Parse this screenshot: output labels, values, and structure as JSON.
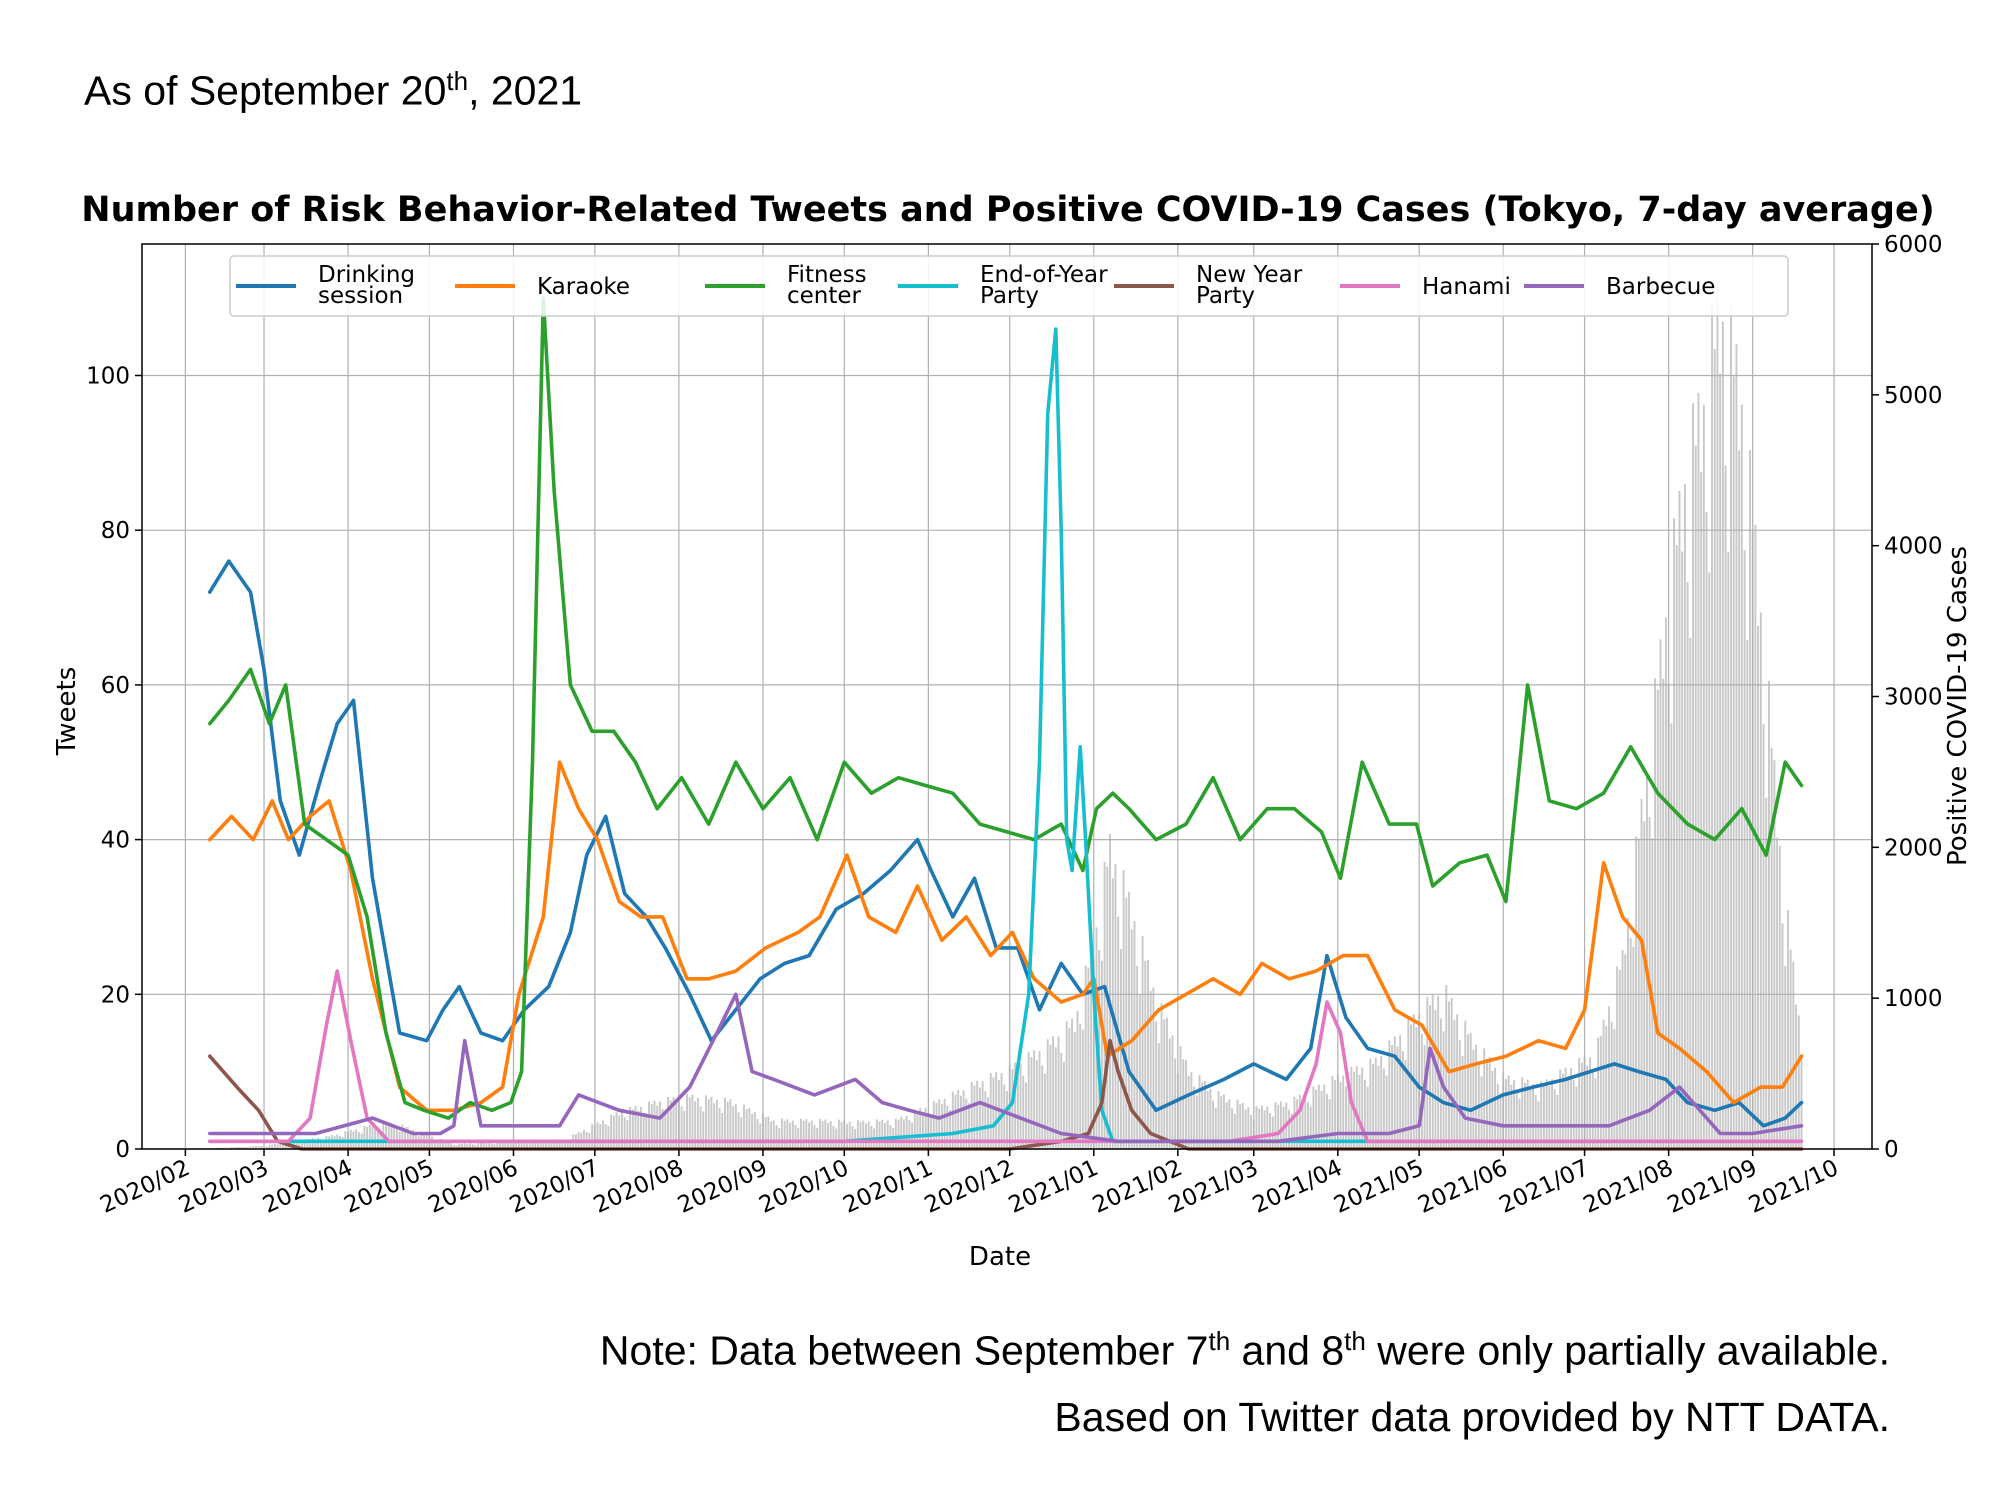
{
  "header": {
    "asof_text": "As of September 20",
    "asof_sup": "th",
    "asof_tail": ", 2021"
  },
  "footer": {
    "note_a": "Note: Data between September 7",
    "note_sup1": "th",
    "note_b": " and 8",
    "note_sup2": "th",
    "note_c": " were only partially available.",
    "source": "Based on Twitter data provided by NTT DATA."
  },
  "chart_data": {
    "type": "line",
    "title": "Number of Risk Behavior-Related Tweets and Positive COVID-19 Cases (Tokyo, 7-day average)",
    "xlabel": "Date",
    "ylabel": "Tweets",
    "y2label": "Positive COVID-19 Cases",
    "ylim": [
      0,
      117
    ],
    "y2lim": [
      0,
      6000
    ],
    "xlim": [
      "2020-01-16",
      "2021-10-15"
    ],
    "yticks": [
      0,
      20,
      40,
      60,
      80,
      100
    ],
    "y2ticks": [
      0,
      1000,
      2000,
      3000,
      4000,
      5000,
      6000
    ],
    "xticks": [
      "2020/02",
      "2020/03",
      "2020/04",
      "2020/05",
      "2020/06",
      "2020/07",
      "2020/08",
      "2020/09",
      "2020/10",
      "2020/11",
      "2020/12",
      "2021/01",
      "2021/02",
      "2021/03",
      "2021/04",
      "2021/05",
      "2021/06",
      "2021/07",
      "2021/08",
      "2021/09",
      "2021/10"
    ],
    "grid": true,
    "legend_position": "top",
    "series": [
      {
        "name": "Drinking session",
        "color": "#1f77b4",
        "x": [
          "2020-02-10",
          "2020-02-17",
          "2020-02-25",
          "2020-03-01",
          "2020-03-07",
          "2020-03-14",
          "2020-03-22",
          "2020-03-28",
          "2020-04-03",
          "2020-04-10",
          "2020-04-20",
          "2020-04-30",
          "2020-05-06",
          "2020-05-12",
          "2020-05-20",
          "2020-05-28",
          "2020-06-05",
          "2020-06-14",
          "2020-06-22",
          "2020-06-28",
          "2020-07-05",
          "2020-07-12",
          "2020-07-20",
          "2020-07-27",
          "2020-08-05",
          "2020-08-13",
          "2020-08-22",
          "2020-08-31",
          "2020-09-09",
          "2020-09-18",
          "2020-09-28",
          "2020-10-08",
          "2020-10-18",
          "2020-10-28",
          "2020-11-02",
          "2020-11-10",
          "2020-11-18",
          "2020-11-26",
          "2020-12-04",
          "2020-12-12",
          "2020-12-20",
          "2020-12-28",
          "2021-01-05",
          "2021-01-14",
          "2021-01-24",
          "2021-02-05",
          "2021-02-18",
          "2021-03-01",
          "2021-03-13",
          "2021-03-22",
          "2021-03-28",
          "2021-04-04",
          "2021-04-12",
          "2021-04-22",
          "2021-05-01",
          "2021-05-10",
          "2021-05-20",
          "2021-06-01",
          "2021-06-12",
          "2021-06-24",
          "2021-07-03",
          "2021-07-12",
          "2021-07-21",
          "2021-07-31",
          "2021-08-08",
          "2021-08-18",
          "2021-08-27",
          "2021-09-05",
          "2021-09-13",
          "2021-09-19"
        ],
        "values": [
          72,
          76,
          72,
          62,
          45,
          38,
          48,
          55,
          58,
          35,
          15,
          14,
          18,
          21,
          15,
          14,
          18,
          21,
          28,
          38,
          43,
          33,
          30,
          26,
          20,
          14,
          18,
          22,
          24,
          25,
          31,
          33,
          36,
          40,
          36,
          30,
          35,
          26,
          26,
          18,
          24,
          20,
          21,
          10,
          5,
          7,
          9,
          11,
          9,
          13,
          25,
          17,
          13,
          12,
          8,
          6,
          5,
          7,
          8,
          9,
          10,
          11,
          10,
          9,
          6,
          5,
          6,
          3,
          4,
          6
        ]
      },
      {
        "name": "Karaoke",
        "color": "#ff7f0e",
        "x": [
          "2020-02-10",
          "2020-02-18",
          "2020-02-26",
          "2020-03-04",
          "2020-03-10",
          "2020-03-18",
          "2020-03-25",
          "2020-04-02",
          "2020-04-10",
          "2020-04-20",
          "2020-04-30",
          "2020-05-10",
          "2020-05-20",
          "2020-05-28",
          "2020-06-03",
          "2020-06-12",
          "2020-06-18",
          "2020-06-25",
          "2020-07-02",
          "2020-07-10",
          "2020-07-18",
          "2020-07-26",
          "2020-08-04",
          "2020-08-12",
          "2020-08-22",
          "2020-09-02",
          "2020-09-14",
          "2020-09-22",
          "2020-10-02",
          "2020-10-10",
          "2020-10-20",
          "2020-10-28",
          "2020-11-06",
          "2020-11-15",
          "2020-11-24",
          "2020-12-02",
          "2020-12-10",
          "2020-12-20",
          "2020-12-28",
          "2021-01-01",
          "2021-01-06",
          "2021-01-15",
          "2021-01-25",
          "2021-02-04",
          "2021-02-14",
          "2021-02-24",
          "2021-03-04",
          "2021-03-14",
          "2021-03-24",
          "2021-04-03",
          "2021-04-12",
          "2021-04-22",
          "2021-05-02",
          "2021-05-12",
          "2021-05-22",
          "2021-06-02",
          "2021-06-14",
          "2021-06-24",
          "2021-07-01",
          "2021-07-08",
          "2021-07-15",
          "2021-07-22",
          "2021-07-28",
          "2021-08-05",
          "2021-08-15",
          "2021-08-25",
          "2021-09-04",
          "2021-09-12",
          "2021-09-19"
        ],
        "values": [
          40,
          43,
          40,
          45,
          40,
          43,
          45,
          36,
          22,
          8,
          5,
          5,
          6,
          8,
          20,
          30,
          50,
          44,
          40,
          32,
          30,
          30,
          22,
          22,
          23,
          26,
          28,
          30,
          38,
          30,
          28,
          34,
          27,
          30,
          25,
          28,
          22,
          19,
          20,
          22,
          12,
          14,
          18,
          20,
          22,
          20,
          24,
          22,
          23,
          25,
          25,
          18,
          16,
          10,
          11,
          12,
          14,
          13,
          18,
          37,
          30,
          27,
          15,
          13,
          10,
          6,
          8,
          8,
          12
        ]
      },
      {
        "name": "Fitness center",
        "color": "#2ca02c",
        "x": [
          "2020-02-10",
          "2020-02-17",
          "2020-02-25",
          "2020-03-03",
          "2020-03-09",
          "2020-03-16",
          "2020-03-24",
          "2020-04-01",
          "2020-04-08",
          "2020-04-15",
          "2020-04-22",
          "2020-04-29",
          "2020-05-08",
          "2020-05-16",
          "2020-05-24",
          "2020-05-31",
          "2020-06-04",
          "2020-06-08",
          "2020-06-12",
          "2020-06-16",
          "2020-06-22",
          "2020-06-30",
          "2020-07-08",
          "2020-07-16",
          "2020-07-24",
          "2020-08-02",
          "2020-08-12",
          "2020-08-22",
          "2020-09-01",
          "2020-09-11",
          "2020-09-21",
          "2020-10-01",
          "2020-10-11",
          "2020-10-21",
          "2020-10-31",
          "2020-11-10",
          "2020-11-20",
          "2020-11-30",
          "2020-12-10",
          "2020-12-20",
          "2020-12-28",
          "2021-01-02",
          "2021-01-08",
          "2021-01-14",
          "2021-01-24",
          "2021-02-04",
          "2021-02-14",
          "2021-02-24",
          "2021-03-06",
          "2021-03-16",
          "2021-03-26",
          "2021-04-02",
          "2021-04-10",
          "2021-04-20",
          "2021-04-30",
          "2021-05-06",
          "2021-05-16",
          "2021-05-26",
          "2021-06-02",
          "2021-06-10",
          "2021-06-18",
          "2021-06-28",
          "2021-07-08",
          "2021-07-18",
          "2021-07-28",
          "2021-08-08",
          "2021-08-18",
          "2021-08-28",
          "2021-09-06",
          "2021-09-13",
          "2021-09-19"
        ],
        "values": [
          55,
          58,
          62,
          55,
          60,
          42,
          40,
          38,
          30,
          15,
          6,
          5,
          4,
          6,
          5,
          6,
          10,
          50,
          110,
          85,
          60,
          54,
          54,
          50,
          44,
          48,
          42,
          50,
          44,
          48,
          40,
          50,
          46,
          48,
          47,
          46,
          42,
          41,
          40,
          42,
          36,
          44,
          46,
          44,
          40,
          42,
          48,
          40,
          44,
          44,
          41,
          35,
          50,
          42,
          42,
          34,
          37,
          38,
          32,
          60,
          45,
          44,
          46,
          52,
          46,
          42,
          40,
          44,
          38,
          50,
          47
        ]
      },
      {
        "name": "End-of-Year Party",
        "color": "#17becf",
        "x": [
          "2020-02-10",
          "2020-10-01",
          "2020-11-10",
          "2020-11-25",
          "2020-12-02",
          "2020-12-08",
          "2020-12-12",
          "2020-12-15",
          "2020-12-18",
          "2020-12-20",
          "2020-12-22",
          "2020-12-24",
          "2020-12-27",
          "2020-12-29",
          "2021-01-01",
          "2021-01-04",
          "2021-01-08",
          "2021-02-01",
          "2021-09-19"
        ],
        "values": [
          1,
          1,
          2,
          3,
          6,
          20,
          50,
          95,
          106,
          80,
          40,
          36,
          52,
          40,
          20,
          5,
          1,
          1,
          1
        ]
      },
      {
        "name": "New Year Party",
        "color": "#8c564b",
        "x": [
          "2020-02-10",
          "2020-02-20",
          "2020-02-28",
          "2020-03-06",
          "2020-03-15",
          "2020-12-01",
          "2020-12-20",
          "2020-12-30",
          "2021-01-04",
          "2021-01-07",
          "2021-01-10",
          "2021-01-15",
          "2021-01-22",
          "2021-02-05",
          "2021-09-19"
        ],
        "values": [
          12,
          8,
          5,
          1,
          0,
          0,
          1,
          2,
          6,
          14,
          10,
          5,
          2,
          0,
          0
        ]
      },
      {
        "name": "Hanami",
        "color": "#e377c2",
        "x": [
          "2020-02-10",
          "2020-03-10",
          "2020-03-18",
          "2020-03-24",
          "2020-03-28",
          "2020-04-02",
          "2020-04-08",
          "2020-04-16",
          "2021-02-20",
          "2021-03-10",
          "2021-03-18",
          "2021-03-24",
          "2021-03-28",
          "2021-04-02",
          "2021-04-06",
          "2021-04-12",
          "2021-09-19"
        ],
        "values": [
          1,
          1,
          4,
          16,
          23,
          14,
          4,
          1,
          1,
          2,
          5,
          11,
          19,
          15,
          6,
          1,
          1
        ]
      },
      {
        "name": "Barbecue",
        "color": "#9467bd",
        "x": [
          "2020-02-10",
          "2020-03-01",
          "2020-03-20",
          "2020-04-10",
          "2020-04-25",
          "2020-05-05",
          "2020-05-10",
          "2020-05-14",
          "2020-05-20",
          "2020-06-05",
          "2020-06-18",
          "2020-06-25",
          "2020-07-10",
          "2020-07-25",
          "2020-08-05",
          "2020-08-15",
          "2020-08-22",
          "2020-08-28",
          "2020-09-05",
          "2020-09-20",
          "2020-10-05",
          "2020-10-15",
          "2020-10-25",
          "2020-11-05",
          "2020-11-20",
          "2020-12-05",
          "2020-12-20",
          "2021-01-10",
          "2021-02-10",
          "2021-03-10",
          "2021-04-01",
          "2021-04-20",
          "2021-05-01",
          "2021-05-05",
          "2021-05-10",
          "2021-05-18",
          "2021-06-01",
          "2021-06-20",
          "2021-07-10",
          "2021-07-25",
          "2021-08-05",
          "2021-08-20",
          "2021-09-01",
          "2021-09-19"
        ],
        "values": [
          2,
          2,
          2,
          4,
          2,
          2,
          3,
          14,
          3,
          3,
          3,
          7,
          5,
          4,
          8,
          15,
          20,
          10,
          9,
          7,
          9,
          6,
          5,
          4,
          6,
          4,
          2,
          1,
          1,
          1,
          2,
          2,
          3,
          13,
          8,
          4,
          3,
          3,
          3,
          5,
          8,
          2,
          2,
          3
        ]
      }
    ],
    "cases_series": {
      "name": "Positive COVID-19 Cases",
      "color": "#c8c8c8",
      "x": [
        "2020-02-10",
        "2020-03-01",
        "2020-03-25",
        "2020-04-10",
        "2020-04-20",
        "2020-05-10",
        "2020-06-20",
        "2020-07-10",
        "2020-07-25",
        "2020-08-05",
        "2020-08-20",
        "2020-09-05",
        "2020-09-20",
        "2020-10-05",
        "2020-10-20",
        "2020-11-05",
        "2020-11-20",
        "2020-12-01",
        "2020-12-15",
        "2020-12-25",
        "2021-01-01",
        "2021-01-07",
        "2021-01-15",
        "2021-01-25",
        "2021-02-05",
        "2021-02-15",
        "2021-03-01",
        "2021-03-15",
        "2021-04-01",
        "2021-04-15",
        "2021-05-01",
        "2021-05-10",
        "2021-05-20",
        "2021-06-01",
        "2021-06-15",
        "2021-06-25",
        "2021-07-05",
        "2021-07-15",
        "2021-07-25",
        "2021-08-01",
        "2021-08-07",
        "2021-08-14",
        "2021-08-20",
        "2021-08-28",
        "2021-09-05",
        "2021-09-12",
        "2021-09-19"
      ],
      "values": [
        5,
        20,
        80,
        150,
        150,
        30,
        60,
        230,
        300,
        330,
        300,
        180,
        180,
        170,
        180,
        300,
        420,
        500,
        650,
        800,
        1300,
        1900,
        1500,
        900,
        500,
        350,
        250,
        300,
        450,
        550,
        850,
        1000,
        700,
        450,
        400,
        500,
        600,
        1200,
        2500,
        3500,
        4200,
        4700,
        5300,
        4700,
        3200,
        1700,
        700
      ]
    },
    "annotations": [
      {
        "name": "Drinking session",
        "legend_line1": "Drinking",
        "legend_line2": "session",
        "color": "#1f77b4"
      },
      {
        "name": "Karaoke",
        "legend_line1": "Karaoke",
        "legend_line2": "",
        "color": "#ff7f0e"
      },
      {
        "name": "Fitness center",
        "legend_line1": "Fitness",
        "legend_line2": "center",
        "color": "#2ca02c"
      },
      {
        "name": "End-of-Year Party",
        "legend_line1": "End-of-Year",
        "legend_line2": "Party",
        "color": "#17becf"
      },
      {
        "name": "New Year Party",
        "legend_line1": "New Year",
        "legend_line2": "Party",
        "color": "#8c564b"
      },
      {
        "name": "Hanami",
        "legend_line1": "Hanami",
        "legend_line2": "",
        "color": "#e377c2"
      },
      {
        "name": "Barbecue",
        "legend_line1": "Barbecue",
        "legend_line2": "",
        "color": "#9467bd"
      }
    ]
  }
}
